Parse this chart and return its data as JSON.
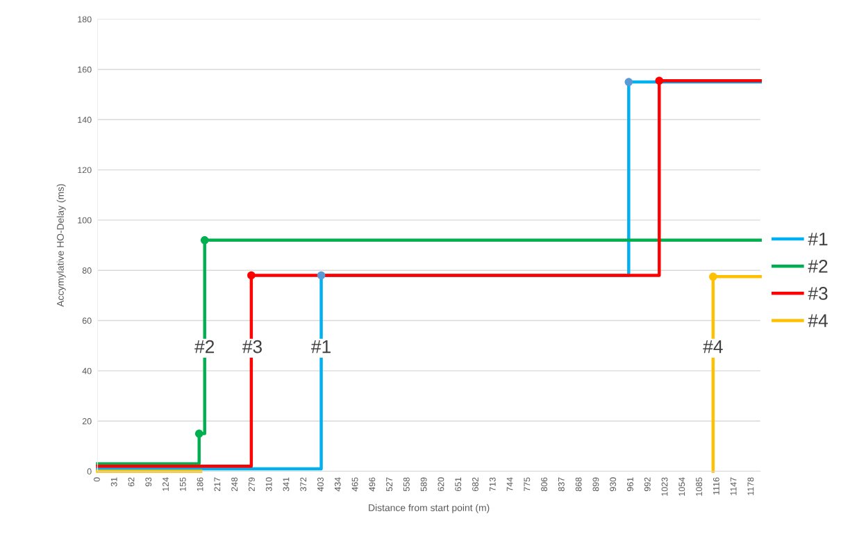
{
  "chart_data": {
    "type": "step",
    "xlabel": "Distance from start point (m)",
    "ylabel": "Accymylative HO-Delay (ms)",
    "xlim": [
      0,
      1194
    ],
    "ylim": [
      0,
      180
    ],
    "xticks": [
      0,
      31,
      62,
      93,
      124,
      155,
      186,
      217,
      248,
      279,
      310,
      341,
      372,
      403,
      434,
      465,
      496,
      527,
      558,
      589,
      620,
      651,
      682,
      713,
      744,
      775,
      806,
      837,
      868,
      899,
      930,
      961,
      992,
      1023,
      1054,
      1085,
      1116,
      1147,
      1178
    ],
    "yticks": [
      0,
      20,
      40,
      60,
      80,
      100,
      120,
      140,
      160,
      180
    ],
    "grid": "y",
    "legend": "right",
    "line_style": "solid",
    "marker": "none",
    "series": [
      {
        "name": "#1",
        "color": "#00b0f0",
        "x": [
          0,
          403,
          957,
          1194
        ],
        "values": [
          1,
          78,
          155,
          155
        ]
      },
      {
        "name": "#2",
        "color": "#00b050",
        "x": [
          0,
          183,
          193,
          1194
        ],
        "values": [
          3,
          15,
          92,
          92
        ]
      },
      {
        "name": "#3",
        "color": "#ff0000",
        "x": [
          0,
          277,
          1012,
          1194
        ],
        "values": [
          2,
          78,
          155.5,
          155.5
        ]
      },
      {
        "name": "#4",
        "color": "#ffc000",
        "x": [
          0,
          186
        ],
        "values": [
          0,
          0
        ]
      },
      {
        "color": "#ffc000",
        "x": [
          1109,
          1109,
          1194
        ],
        "values": [
          0,
          77.5,
          77.5
        ]
      },
      {
        "type": "scatter",
        "color": "#5b9bd5",
        "marker": "circle",
        "x": [
          403,
          957
        ],
        "values": [
          78,
          155
        ]
      },
      {
        "type": "scatter",
        "color": "#00b050",
        "marker": "circle",
        "x": [
          183,
          193
        ],
        "values": [
          15,
          92
        ]
      },
      {
        "type": "scatter",
        "color": "#ff0000",
        "marker": "circle",
        "x": [
          277,
          1012
        ],
        "values": [
          78,
          155.5
        ]
      },
      {
        "type": "scatter",
        "color": "#ffc000",
        "marker": "circle",
        "x": [
          1109
        ],
        "values": [
          77.5
        ]
      }
    ],
    "annotations": [
      {
        "text": "#2",
        "x": 193,
        "y": 49
      },
      {
        "text": "#3",
        "x": 279,
        "y": 49
      },
      {
        "text": "#1",
        "x": 403,
        "y": 49
      },
      {
        "text": "#4",
        "x": 1109,
        "y": 49
      }
    ]
  }
}
